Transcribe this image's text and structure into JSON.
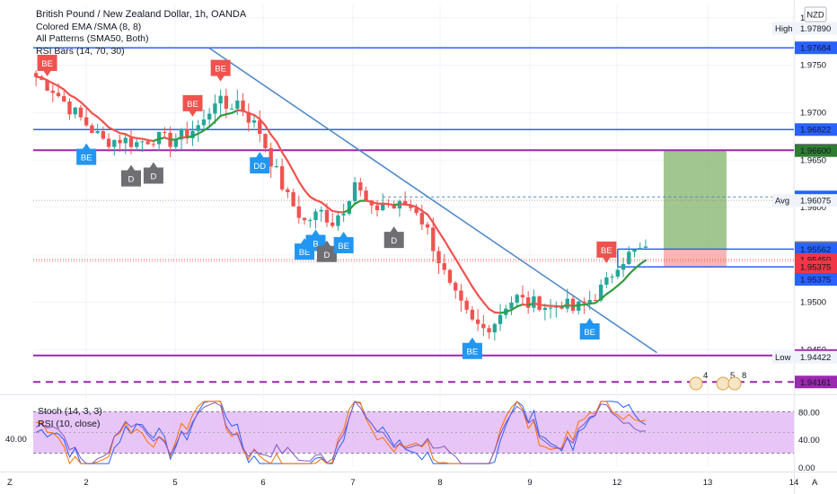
{
  "header": {
    "title": "British Pound / New Zealand Dollar, 1h, OANDA",
    "indicators": [
      "Colored EMA /SMA (8, 8)",
      "All Patterns (SMA50, Both)",
      "RSI Bars (14, 70, 30)"
    ],
    "currency_badge": "NZD"
  },
  "oscillator": {
    "labels": [
      "Stoch (14, 3, 3)",
      "RSI (10, close)"
    ],
    "left_value": "40.00",
    "axis_ticks": [
      "80.00",
      "40.00",
      "0.00"
    ]
  },
  "footer": {
    "left_letter": "Z",
    "right_letter": "A"
  },
  "colors": {
    "up": "#26a69a",
    "down": "#ef5350",
    "ema_up": "#2e9c3e",
    "ema_down": "#ef5350",
    "trendline": "#4a86c8",
    "blue_line": "#2962ff",
    "purple_line": "#9c27b0",
    "pattern_bear": "#ef5350",
    "pattern_bull": "#2196f3",
    "pattern_neutral": "#6f6f73",
    "target_zone": "#81b36a",
    "stop_zone": "#f7a4a0",
    "osc_fill": "#e2b6f5"
  },
  "chart_data": {
    "type": "candlestick",
    "symbol": "British Pound / New Zealand Dollar",
    "timeframe": "1h",
    "x_ticks": [
      "2",
      "5",
      "6",
      "7",
      "8",
      "9",
      "12",
      "13",
      "14"
    ],
    "y_ticks": [
      1.98,
      1.975,
      1.97,
      1.965,
      1.96,
      1.955,
      1.95,
      1.945
    ],
    "ylim": [
      1.9405,
      1.9815
    ],
    "price_labels": [
      {
        "text": "1.97890",
        "prefix": "High",
        "kind": "light"
      },
      {
        "text": "1.97684",
        "kind": "blue"
      },
      {
        "text": "1.96822",
        "kind": "blue"
      },
      {
        "text": "1.96604",
        "kind": "purple"
      },
      {
        "text": "1.96600",
        "kind": "green"
      },
      {
        "text": "1.96112",
        "kind": "blue"
      },
      {
        "text": "1.96075",
        "prefix": "Avg",
        "kind": "light"
      },
      {
        "text": "1.95578",
        "kind": "gray"
      },
      {
        "text": "1.95562",
        "kind": "blue"
      },
      {
        "text": "1.95450",
        "kind": "red"
      },
      {
        "text": "57:09",
        "kind": "red"
      },
      {
        "text": "1.95375",
        "kind": "red"
      },
      {
        "text": "1.95375",
        "kind": "blue"
      },
      {
        "text": "1.94440",
        "kind": "purple"
      },
      {
        "text": "1.94422",
        "prefix": "Low",
        "kind": "light"
      },
      {
        "text": "1.94161",
        "kind": "purple"
      }
    ],
    "horizontal_lines": [
      {
        "price": 1.97684,
        "color": "blue",
        "style": "solid"
      },
      {
        "price": 1.96822,
        "color": "blue",
        "style": "solid"
      },
      {
        "price": 1.96604,
        "color": "purple",
        "style": "solid"
      },
      {
        "price": 1.9444,
        "color": "purple",
        "style": "solid"
      },
      {
        "price": 1.94161,
        "color": "purple",
        "style": "dashed"
      }
    ],
    "trendline": {
      "from": {
        "bar": 31,
        "price": 1.9768
      },
      "to": {
        "bar": 111,
        "price": 1.9447
      }
    },
    "position": {
      "entry": 1.95562,
      "target": 1.966,
      "stop": 1.95375
    },
    "patterns": [
      {
        "label": "BE",
        "type": "bear",
        "bar": 2
      },
      {
        "label": "BE",
        "type": "bull",
        "bar": 9
      },
      {
        "label": "D",
        "type": "neutral",
        "bar": 17
      },
      {
        "label": "D",
        "type": "neutral",
        "bar": 21
      },
      {
        "label": "BE",
        "type": "bear",
        "bar": 28
      },
      {
        "label": "BE",
        "type": "bear",
        "bar": 33
      },
      {
        "label": "DD",
        "type": "bull",
        "bar": 40
      },
      {
        "label": "BE",
        "type": "bull",
        "bar": 48
      },
      {
        "label": "B",
        "type": "bull",
        "bar": 50
      },
      {
        "label": "D",
        "type": "neutral",
        "bar": 52
      },
      {
        "label": "BE",
        "type": "bull",
        "bar": 55
      },
      {
        "label": "D",
        "type": "neutral",
        "bar": 64
      },
      {
        "label": "BE",
        "type": "bull",
        "bar": 78
      },
      {
        "label": "BE",
        "type": "bull",
        "bar": 99
      },
      {
        "label": "BE",
        "type": "bear",
        "bar": 102
      }
    ],
    "event_badges": [
      "4",
      "5",
      "8"
    ],
    "close_path": [
      [
        0,
        1.9738
      ],
      [
        3,
        1.9725
      ],
      [
        6,
        1.9705
      ],
      [
        9,
        1.9688
      ],
      [
        12,
        1.967
      ],
      [
        15,
        1.9672
      ],
      [
        18,
        1.9668
      ],
      [
        21,
        1.9674
      ],
      [
        24,
        1.967
      ],
      [
        27,
        1.9678
      ],
      [
        30,
        1.969
      ],
      [
        32,
        1.9715
      ],
      [
        34,
        1.9705
      ],
      [
        36,
        1.9712
      ],
      [
        38,
        1.9695
      ],
      [
        40,
        1.968
      ],
      [
        42,
        1.965
      ],
      [
        45,
        1.961
      ],
      [
        48,
        1.9585
      ],
      [
        51,
        1.9595
      ],
      [
        53,
        1.9585
      ],
      [
        55,
        1.96
      ],
      [
        57,
        1.9628
      ],
      [
        58,
        1.9615
      ],
      [
        60,
        1.9595
      ],
      [
        62,
        1.9605
      ],
      [
        64,
        1.96
      ],
      [
        66,
        1.9603
      ],
      [
        68,
        1.9598
      ],
      [
        70,
        1.9575
      ],
      [
        72,
        1.9545
      ],
      [
        74,
        1.9515
      ],
      [
        76,
        1.9495
      ],
      [
        78,
        1.9478
      ],
      [
        80,
        1.9472
      ],
      [
        82,
        1.948
      ],
      [
        84,
        1.9498
      ],
      [
        86,
        1.9505
      ],
      [
        88,
        1.9498
      ],
      [
        90,
        1.95
      ],
      [
        92,
        1.9493
      ],
      [
        94,
        1.95
      ],
      [
        96,
        1.9492
      ],
      [
        98,
        1.9498
      ],
      [
        100,
        1.9508
      ],
      [
        102,
        1.952
      ],
      [
        104,
        1.9542
      ],
      [
        106,
        1.955
      ],
      [
        108,
        1.9555
      ],
      [
        109,
        1.9553
      ]
    ]
  }
}
